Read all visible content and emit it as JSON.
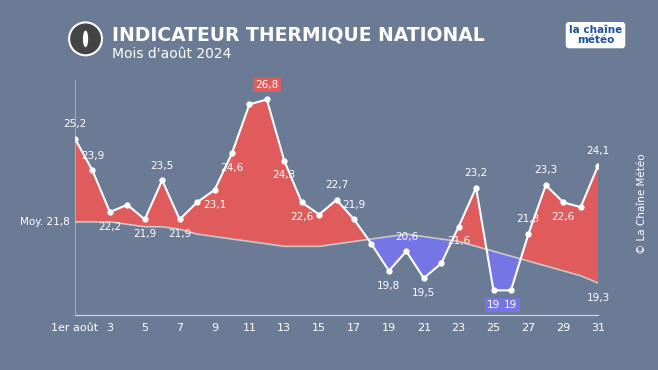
{
  "chart_data": {
    "type": "area",
    "title": "INDICATEUR THERMIQUE NATIONAL",
    "subtitle": "Mois d'août 2024",
    "logo": [
      "la chaîne",
      "météo"
    ],
    "credit": "© La Chaîne Météo",
    "x": [
      1,
      2,
      3,
      4,
      5,
      6,
      7,
      8,
      9,
      10,
      11,
      12,
      13,
      14,
      15,
      16,
      17,
      18,
      19,
      20,
      21,
      22,
      23,
      24,
      25,
      26,
      27,
      28,
      29,
      30,
      31
    ],
    "series": [
      {
        "type": "line",
        "color": "#ffffff",
        "marker": "o",
        "line_style": "solid",
        "values": [
          25.2,
          23.9,
          22.2,
          22.5,
          21.9,
          23.5,
          21.9,
          22.6,
          23.1,
          24.6,
          26.6,
          26.8,
          24.3,
          22.6,
          22.1,
          22.7,
          21.9,
          20.9,
          19.8,
          20.6,
          19.5,
          20.1,
          21.6,
          23.2,
          19,
          19,
          21.3,
          23.3,
          22.6,
          22.4,
          24.1
        ],
        "value_labels": [
          "25,2",
          "23,9",
          "22,2",
          null,
          "21,9",
          "23,5",
          "21,9",
          null,
          "23,1",
          "24,6",
          null,
          "26,8",
          "24,3",
          "22,6",
          null,
          "22,7",
          "21,9",
          null,
          "19,8",
          "20,6",
          "19,5",
          null,
          "21,6",
          "23,2",
          "19",
          "19",
          "21,3",
          "23,3",
          "22,6",
          null,
          "24,1"
        ]
      },
      {
        "type": "line",
        "color": "#c8c8c8",
        "line_style": "solid",
        "values": [
          21.8,
          21.8,
          21.8,
          21.7,
          21.6,
          21.6,
          21.5,
          21.3,
          21.2,
          21.1,
          21.0,
          20.9,
          20.8,
          20.8,
          20.8,
          20.9,
          21.0,
          21.1,
          21.2,
          21.3,
          21.2,
          21.1,
          21.0,
          20.8,
          20.6,
          20.4,
          20.2,
          20.0,
          19.8,
          19.6,
          19.3
        ],
        "value_labels": [
          "Moy. 21,8",
          null,
          null,
          null,
          null,
          null,
          null,
          null,
          null,
          null,
          null,
          null,
          null,
          null,
          null,
          null,
          null,
          null,
          null,
          null,
          null,
          null,
          null,
          null,
          null,
          null,
          null,
          null,
          null,
          null,
          "19,3"
        ]
      }
    ],
    "colors": [
      "#e05c5c",
      "#7575e6"
    ],
    "data_labels": true,
    "xlim": [
      1,
      31
    ],
    "xticks": [
      {
        "value": 1,
        "label": "1er août"
      },
      3,
      5,
      7,
      9,
      11,
      13,
      15,
      17,
      19,
      21,
      23,
      25,
      27,
      29,
      31
    ],
    "ylim": [
      18.0,
      27.6
    ],
    "yticks": [],
    "tick_labels": "x",
    "grid": false
  }
}
